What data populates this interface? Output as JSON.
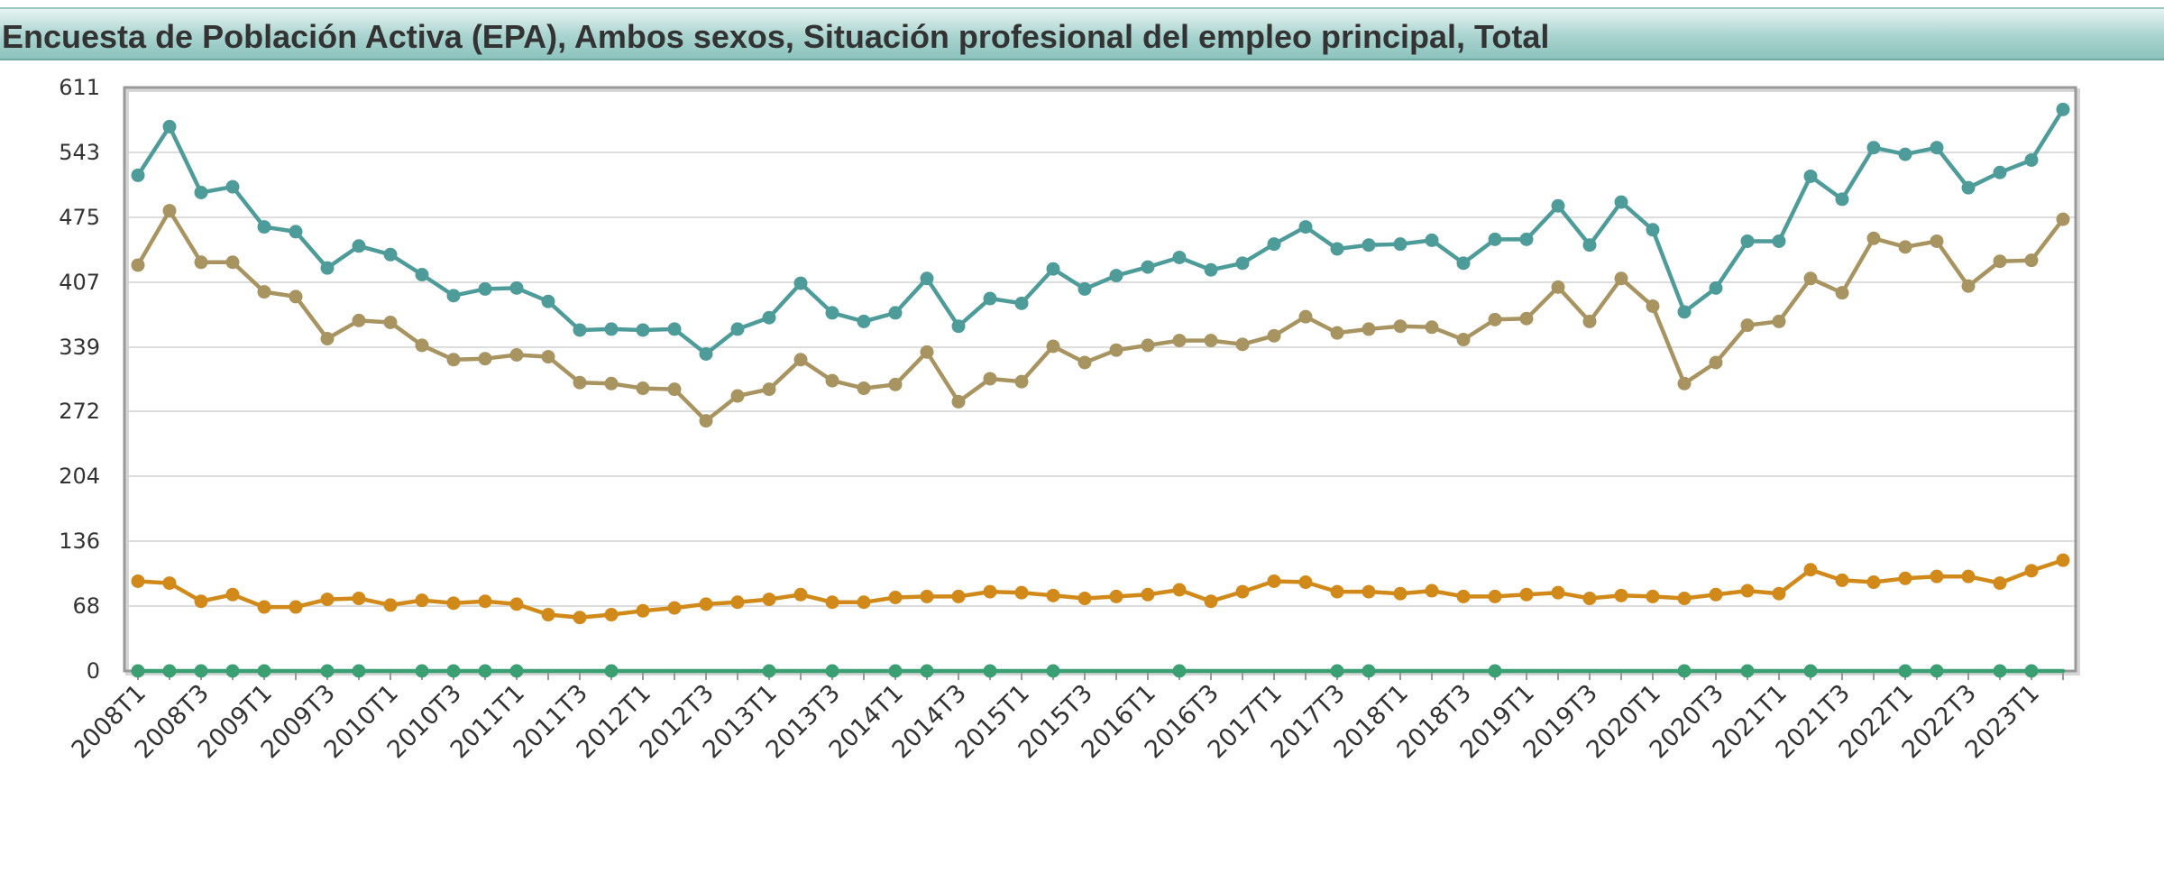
{
  "title": "Encuesta de Población Activa (EPA), Ambos sexos, Situación profesional del empleo principal, Total",
  "colors": {
    "series_teal": "#4e9c9a",
    "series_khaki": "#a89460",
    "series_orange": "#d18a1a",
    "series_green": "#3b9f74",
    "grid": "#dddddd",
    "frame": "#999999"
  },
  "chart_data": {
    "type": "line",
    "ylim": [
      0,
      611
    ],
    "y_ticks": [
      0,
      68,
      136,
      204,
      272,
      339,
      407,
      475,
      543,
      611
    ],
    "x_tick_labels": [
      "2008T1",
      "2008T3",
      "2009T1",
      "2009T3",
      "2010T1",
      "2010T3",
      "2011T1",
      "2011T3",
      "2012T1",
      "2012T3",
      "2013T1",
      "2013T3",
      "2014T1",
      "2014T3",
      "2015T1",
      "2015T3",
      "2016T1",
      "2016T3",
      "2017T1",
      "2017T3",
      "2018T1",
      "2018T3",
      "2019T1",
      "2019T3",
      "2020T1",
      "2020T3",
      "2021T1",
      "2021T3",
      "2022T1",
      "2022T3",
      "2023T1"
    ],
    "x": [
      "2008T1",
      "2008T2",
      "2008T3",
      "2008T4",
      "2009T1",
      "2009T2",
      "2009T3",
      "2009T4",
      "2010T1",
      "2010T2",
      "2010T3",
      "2010T4",
      "2011T1",
      "2011T2",
      "2011T3",
      "2011T4",
      "2012T1",
      "2012T2",
      "2012T3",
      "2012T4",
      "2013T1",
      "2013T2",
      "2013T3",
      "2013T4",
      "2014T1",
      "2014T2",
      "2014T3",
      "2014T4",
      "2015T1",
      "2015T2",
      "2015T3",
      "2015T4",
      "2016T1",
      "2016T2",
      "2016T3",
      "2016T4",
      "2017T1",
      "2017T2",
      "2017T3",
      "2017T4",
      "2018T1",
      "2018T2",
      "2018T3",
      "2018T4",
      "2019T1",
      "2019T2",
      "2019T3",
      "2019T4",
      "2020T1",
      "2020T2",
      "2020T3",
      "2020T4",
      "2021T1",
      "2021T2",
      "2021T3",
      "2021T4",
      "2022T1",
      "2022T2",
      "2022T3",
      "2022T4",
      "2023T1",
      "2023T2"
    ],
    "series": [
      {
        "values": [
          519,
          570,
          501,
          507,
          465,
          460,
          422,
          445,
          436,
          415,
          393,
          400,
          401,
          387,
          357,
          358,
          357,
          358,
          332,
          358,
          370,
          406,
          375,
          366,
          375,
          411,
          361,
          390,
          385,
          421,
          400,
          414,
          423,
          433,
          420,
          427,
          447,
          465,
          442,
          446,
          447,
          451,
          427,
          452,
          452,
          487,
          446,
          491,
          462,
          376,
          401,
          450,
          450,
          518,
          494,
          548,
          541,
          548,
          506,
          522,
          535,
          588
        ]
      },
      {
        "values": [
          425,
          482,
          428,
          428,
          397,
          392,
          348,
          367,
          365,
          341,
          326,
          327,
          331,
          329,
          302,
          301,
          296,
          295,
          262,
          288,
          295,
          326,
          304,
          296,
          300,
          334,
          282,
          306,
          303,
          340,
          323,
          336,
          341,
          346,
          346,
          342,
          351,
          371,
          354,
          358,
          361,
          360,
          347,
          368,
          369,
          402,
          366,
          411,
          382,
          301,
          323,
          362,
          366,
          411,
          396,
          453,
          444,
          450,
          403,
          429,
          430,
          473
        ]
      },
      {
        "values": [
          94,
          92,
          73,
          80,
          67,
          67,
          75,
          76,
          69,
          74,
          71,
          73,
          70,
          59,
          56,
          59,
          63,
          66,
          70,
          72,
          75,
          80,
          72,
          72,
          77,
          78,
          78,
          83,
          82,
          79,
          76,
          78,
          80,
          85,
          73,
          83,
          94,
          93,
          83,
          83,
          81,
          84,
          78,
          78,
          80,
          82,
          76,
          79,
          78,
          76,
          80,
          84,
          81,
          106,
          95,
          93,
          97,
          99,
          99,
          92,
          105,
          116
        ]
      },
      {
        "values": [
          0,
          0,
          0,
          0,
          0,
          0,
          0,
          0,
          0,
          0,
          0,
          0,
          0,
          0,
          0,
          0,
          0,
          0,
          0,
          0,
          0,
          0,
          0,
          0,
          0,
          0,
          0,
          0,
          0,
          0,
          0,
          0,
          0,
          0,
          0,
          0,
          0,
          0,
          0,
          0,
          0,
          0,
          0,
          0,
          0,
          0,
          0,
          0,
          0,
          0,
          0,
          0,
          0,
          0,
          0,
          0,
          0,
          0,
          0,
          0,
          0,
          0
        ],
        "marker_indices": [
          0,
          1,
          2,
          3,
          4,
          6,
          7,
          9,
          10,
          11,
          12,
          15,
          20,
          22,
          24,
          25,
          27,
          29,
          33,
          38,
          39,
          43,
          49,
          51,
          53,
          56,
          57,
          59,
          60
        ]
      }
    ]
  }
}
